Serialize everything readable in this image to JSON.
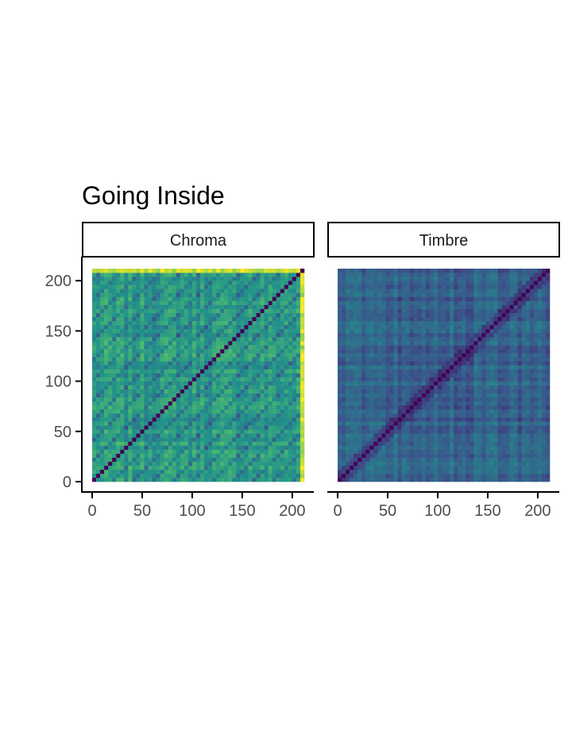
{
  "chart_data": {
    "type": "heatmap",
    "title": "Going Inside",
    "xlabel": "",
    "ylabel": "",
    "xlim": [
      0,
      212
    ],
    "ylim": [
      0,
      212
    ],
    "x_ticks": [
      "0",
      "50",
      "100",
      "150",
      "200"
    ],
    "y_ticks": [
      "0",
      "50",
      "100",
      "150",
      "200"
    ],
    "grid": false,
    "legend": "none",
    "colormap": [
      "#440154",
      "#3b528b",
      "#21918c",
      "#5ec962",
      "#fde725"
    ],
    "panels": [
      {
        "name": "Chroma",
        "matrix_size": 212,
        "diagonal_value": 0,
        "typical_distance": "medium-high",
        "pattern": "parallel diagonal stripes (repetition)"
      },
      {
        "name": "Timbre",
        "matrix_size": 212,
        "diagonal_value": 0,
        "typical_distance": "low-medium",
        "pattern": "block structure"
      }
    ]
  }
}
